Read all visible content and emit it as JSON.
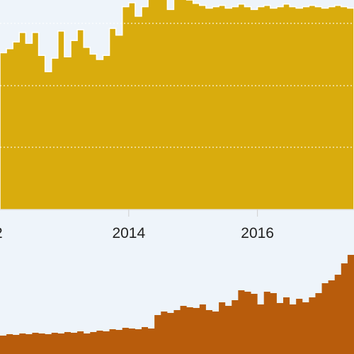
{
  "chart_data": [
    {
      "type": "area",
      "step": true,
      "grid": true,
      "color": "#d9ac0d",
      "xlabel": "",
      "ylabel": "",
      "x_ticks": [
        "2014",
        "2016"
      ],
      "x_tick_partial_left": "2",
      "x_start": 2012.0,
      "x_step": 0.1,
      "xlim": [
        2012.0,
        2017.5
      ],
      "ylim": [
        0,
        310
      ],
      "values": [
        232,
        238,
        248,
        262,
        246,
        262,
        228,
        204,
        224,
        264,
        226,
        250,
        266,
        240,
        230,
        222,
        228,
        268,
        258,
        300,
        306,
        286,
        300,
        322,
        320,
        318,
        296,
        318,
        314,
        310,
        305,
        302,
        298,
        300,
        302,
        298,
        300,
        304,
        300,
        296,
        300,
        302,
        298,
        300,
        304,
        300,
        298,
        300,
        302,
        300,
        298,
        300,
        302,
        300,
        298
      ]
    },
    {
      "type": "area",
      "step": true,
      "color": "#b85c0c",
      "xlabel": "",
      "ylabel": "",
      "x_start": 2012.0,
      "x_step": 0.1,
      "xlim": [
        2012.0,
        2017.5
      ],
      "ylim": [
        0,
        140
      ],
      "values": [
        26,
        28,
        27,
        29,
        28,
        30,
        29,
        28,
        30,
        29,
        31,
        30,
        32,
        29,
        31,
        33,
        32,
        35,
        34,
        37,
        36,
        35,
        38,
        36,
        55,
        60,
        58,
        62,
        68,
        66,
        65,
        70,
        62,
        60,
        73,
        68,
        76,
        90,
        88,
        85,
        70,
        88,
        86,
        72,
        80,
        70,
        78,
        73,
        80,
        86,
        100,
        104,
        112,
        128,
        140
      ]
    }
  ]
}
